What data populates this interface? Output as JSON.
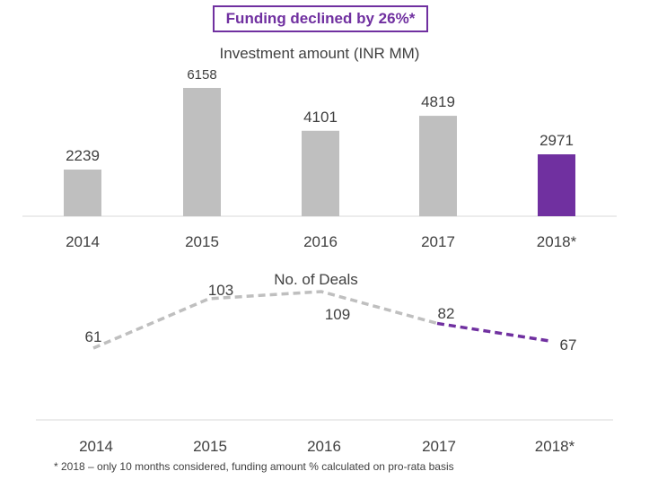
{
  "headline": "Funding declined by 26%*",
  "chart_data": [
    {
      "type": "bar",
      "title": "Investment amount (INR MM)",
      "categories": [
        "2014",
        "2015",
        "2016",
        "2017",
        "2018*"
      ],
      "values": [
        2239,
        6158,
        4101,
        4819,
        2971
      ],
      "highlight_index": 4,
      "ylim": [
        0,
        6158
      ],
      "xlabel": "",
      "ylabel": "",
      "grid": false
    },
    {
      "type": "line",
      "title": "No. of Deals",
      "categories": [
        "2014",
        "2015",
        "2016",
        "2017",
        "2018*"
      ],
      "values": [
        61,
        103,
        109,
        82,
        67
      ],
      "line_style": "dashed",
      "highlight_from_index": 3,
      "xlabel": "",
      "ylabel": "",
      "grid": false
    }
  ],
  "colors": {
    "bar": "#bfbfbf",
    "highlight": "#7030a0",
    "line": "#bfbfbf",
    "axis": "#d9d9d9",
    "text": "#404040"
  },
  "footnote": "* 2018 – only 10 months considered, funding amount % calculated on pro-rata basis"
}
